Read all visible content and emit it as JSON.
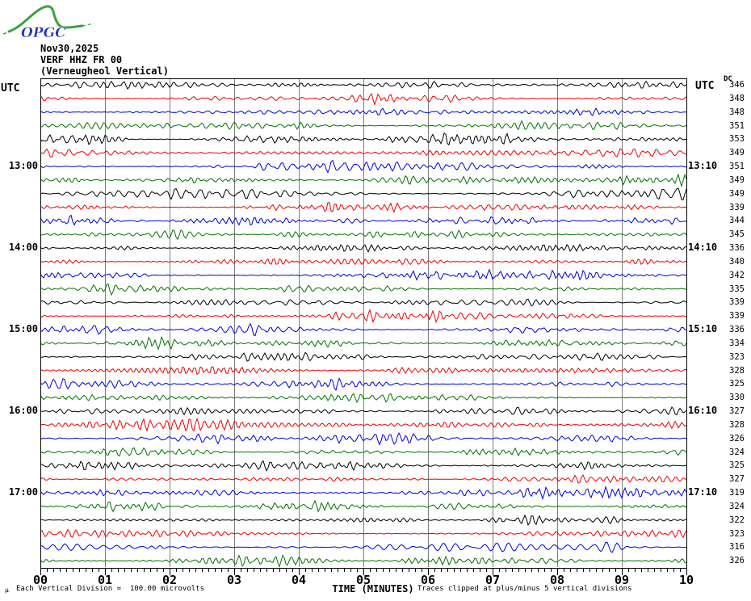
{
  "header": {
    "logo_text": "OPGC",
    "date": "Nov30,2025",
    "station": "VERF HHZ FR 00",
    "station_desc": "(Verneugheol Vertical)"
  },
  "left_axis": {
    "header": "UTC"
  },
  "right_axis": {
    "header": "UTC",
    "dc_header": "DC"
  },
  "footer": {
    "micro_glyph": "µ",
    "scale_note": "Each Vertical Division =  100.00 microvolts",
    "xlabel": "TIME (MINUTES)",
    "clip_note": "Traces clipped at plus/minus 5 vertical divisions"
  },
  "colors": {
    "black": "#000000",
    "red": "#ee0000",
    "blue": "#0000dd",
    "green": "#007300",
    "grid": "#7d7d7d",
    "border": "#000000",
    "logo_green": "#3aa33a",
    "logo_blue": "#2233bb",
    "background": "#ffffff"
  },
  "chart_data": {
    "type": "line",
    "subtype": "helicorder-seismogram",
    "title": "VERF HHZ FR 00 (Verneugheol Vertical) Nov30,2025",
    "xlabel": "TIME (MINUTES)",
    "x_ticks": [
      "00",
      "01",
      "02",
      "03",
      "04",
      "05",
      "06",
      "07",
      "08",
      "09",
      "10"
    ],
    "x_range_minutes": [
      0,
      10
    ],
    "minor_ticks_per_minute": 10,
    "minutes_per_row": 10,
    "grid": "vertical gray line at each minute",
    "legend_position": "none",
    "scale_note": "Each Vertical Division = 100.00 microvolts",
    "clip_note": "Traces clipped at plus/minus 5 vertical divisions",
    "waveform_note": "continuous background seismic noise, amplitude well under one vertical division, no distinct events",
    "rows": [
      {
        "left_label": "",
        "right_label": "",
        "color": "black",
        "dc": 346
      },
      {
        "left_label": "",
        "right_label": "",
        "color": "red",
        "dc": 348
      },
      {
        "left_label": "",
        "right_label": "",
        "color": "blue",
        "dc": 348
      },
      {
        "left_label": "",
        "right_label": "",
        "color": "green",
        "dc": 351
      },
      {
        "left_label": "",
        "right_label": "",
        "color": "black",
        "dc": 353
      },
      {
        "left_label": "",
        "right_label": "",
        "color": "red",
        "dc": 349
      },
      {
        "left_label": "13:00",
        "right_label": "13:10",
        "color": "blue",
        "dc": 351
      },
      {
        "left_label": "",
        "right_label": "",
        "color": "green",
        "dc": 349
      },
      {
        "left_label": "",
        "right_label": "",
        "color": "black",
        "dc": 349
      },
      {
        "left_label": "",
        "right_label": "",
        "color": "red",
        "dc": 339
      },
      {
        "left_label": "",
        "right_label": "",
        "color": "blue",
        "dc": 344
      },
      {
        "left_label": "",
        "right_label": "",
        "color": "green",
        "dc": 345
      },
      {
        "left_label": "14:00",
        "right_label": "14:10",
        "color": "black",
        "dc": 336
      },
      {
        "left_label": "",
        "right_label": "",
        "color": "red",
        "dc": 340
      },
      {
        "left_label": "",
        "right_label": "",
        "color": "blue",
        "dc": 342
      },
      {
        "left_label": "",
        "right_label": "",
        "color": "green",
        "dc": 335
      },
      {
        "left_label": "",
        "right_label": "",
        "color": "black",
        "dc": 339
      },
      {
        "left_label": "",
        "right_label": "",
        "color": "red",
        "dc": 339
      },
      {
        "left_label": "15:00",
        "right_label": "15:10",
        "color": "blue",
        "dc": 336
      },
      {
        "left_label": "",
        "right_label": "",
        "color": "green",
        "dc": 334
      },
      {
        "left_label": "",
        "right_label": "",
        "color": "black",
        "dc": 323
      },
      {
        "left_label": "",
        "right_label": "",
        "color": "red",
        "dc": 328
      },
      {
        "left_label": "",
        "right_label": "",
        "color": "blue",
        "dc": 325
      },
      {
        "left_label": "",
        "right_label": "",
        "color": "green",
        "dc": 330
      },
      {
        "left_label": "16:00",
        "right_label": "16:10",
        "color": "black",
        "dc": 327
      },
      {
        "left_label": "",
        "right_label": "",
        "color": "red",
        "dc": 328
      },
      {
        "left_label": "",
        "right_label": "",
        "color": "blue",
        "dc": 326
      },
      {
        "left_label": "",
        "right_label": "",
        "color": "green",
        "dc": 324
      },
      {
        "left_label": "",
        "right_label": "",
        "color": "black",
        "dc": 325
      },
      {
        "left_label": "",
        "right_label": "",
        "color": "red",
        "dc": 327
      },
      {
        "left_label": "17:00",
        "right_label": "17:10",
        "color": "blue",
        "dc": 319
      },
      {
        "left_label": "",
        "right_label": "",
        "color": "green",
        "dc": 324
      },
      {
        "left_label": "",
        "right_label": "",
        "color": "black",
        "dc": 322
      },
      {
        "left_label": "",
        "right_label": "",
        "color": "red",
        "dc": 323
      },
      {
        "left_label": "",
        "right_label": "",
        "color": "blue",
        "dc": 316
      },
      {
        "left_label": "",
        "right_label": "",
        "color": "green",
        "dc": 326
      }
    ]
  }
}
